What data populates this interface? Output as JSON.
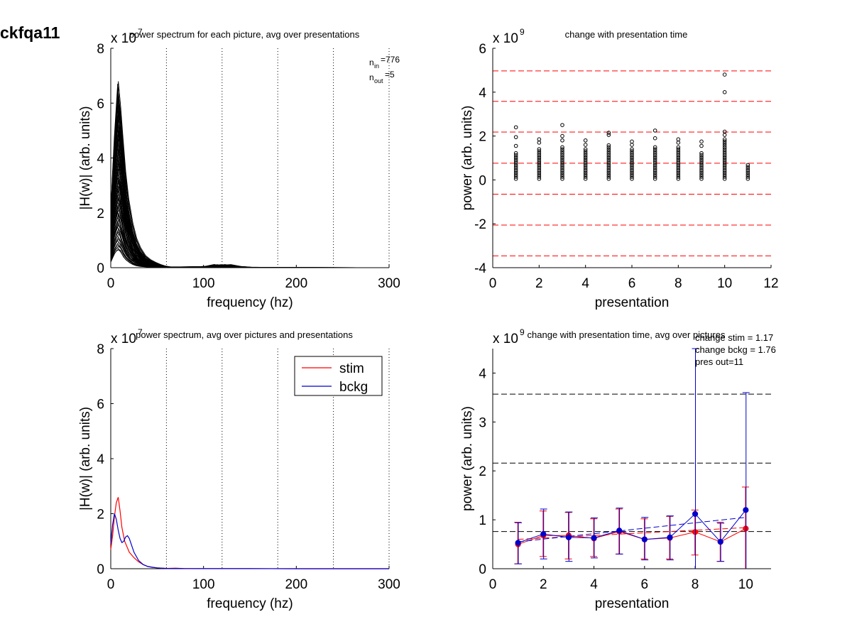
{
  "figure": {
    "id_label": "ckfqa11"
  },
  "colors": {
    "axis": "#000000",
    "stim": "#ff0000",
    "bckg": "#0000cc",
    "threshold_red": "#ff0000",
    "threshold_black": "#000000",
    "gridline": "#000000"
  },
  "chart_data": [
    {
      "type": "line",
      "title": "power spectrum for each picture, avg over presentations",
      "xlabel": "frequency (hz)",
      "ylabel": "|H(w)| (arb. units)",
      "exponent_label": "x 10",
      "exponent_power": "7",
      "xlim": [
        0,
        300
      ],
      "ylim": [
        0,
        8
      ],
      "xticks": [
        0,
        100,
        200,
        300
      ],
      "yticks": [
        0,
        2,
        4,
        6,
        8
      ],
      "vlines": [
        60,
        120,
        180,
        240,
        300
      ],
      "annotations": [
        {
          "base": "n",
          "sub": "in",
          "text": "=776"
        },
        {
          "base": "n",
          "sub": "out",
          "text": "=5"
        }
      ],
      "n_curves_drawn": 80,
      "envelope": {
        "x": [
          0,
          2,
          4,
          6,
          8,
          10,
          12,
          15,
          18,
          22,
          26,
          30,
          35,
          40,
          45,
          50,
          55,
          60,
          80,
          100,
          110,
          120,
          130,
          140,
          160,
          180,
          200,
          250,
          300
        ],
        "y_max": [
          2.1,
          3.5,
          4.8,
          5.8,
          6.8,
          6.0,
          5.0,
          3.6,
          2.6,
          1.7,
          1.1,
          0.75,
          0.45,
          0.3,
          0.2,
          0.12,
          0.06,
          0.03,
          0.03,
          0.04,
          0.05,
          0.12,
          0.05,
          0.02,
          0.01,
          0.01,
          0.005,
          0.003,
          0.002
        ],
        "y_min": [
          0.2,
          0.35,
          0.5,
          0.6,
          0.65,
          0.6,
          0.5,
          0.35,
          0.25,
          0.16,
          0.1,
          0.06,
          0.04,
          0.025,
          0.015,
          0.01,
          0.006,
          0.004,
          0.002,
          0.002,
          0.002,
          0.003,
          0.002,
          0.001,
          0.001,
          0.001,
          0.001,
          0.0,
          0.0
        ]
      }
    },
    {
      "type": "scatter",
      "title": "change with presentation time",
      "xlabel": "presentation",
      "ylabel": "power (arb. units)",
      "exponent_label": "x 10",
      "exponent_power": "9",
      "xlim": [
        0,
        12
      ],
      "ylim": [
        -4,
        6
      ],
      "xticks": [
        0,
        2,
        4,
        6,
        8,
        10,
        12
      ],
      "yticks": [
        -4,
        -2,
        0,
        2,
        4,
        6
      ],
      "hlines_dashed_red": [
        4.97,
        3.58,
        2.18,
        0.76,
        -0.65,
        -2.06,
        -3.46
      ],
      "columns": [
        {
          "x": 1,
          "max": 1.3,
          "outliers": [
            2.4,
            1.95,
            1.55
          ]
        },
        {
          "x": 2,
          "max": 1.4,
          "outliers": [
            1.85,
            1.7
          ]
        },
        {
          "x": 3,
          "max": 1.55,
          "outliers": [
            2.5,
            2.0,
            1.8
          ]
        },
        {
          "x": 4,
          "max": 1.4,
          "outliers": [
            1.8,
            1.6
          ]
        },
        {
          "x": 5,
          "max": 1.6,
          "outliers": [
            2.15,
            2.05
          ]
        },
        {
          "x": 6,
          "max": 1.4,
          "outliers": [
            1.75,
            1.6
          ]
        },
        {
          "x": 7,
          "max": 1.5,
          "outliers": [
            2.25,
            1.9
          ]
        },
        {
          "x": 8,
          "max": 1.5,
          "outliers": [
            1.85,
            1.7
          ]
        },
        {
          "x": 9,
          "max": 1.3,
          "outliers": [
            1.75,
            1.55
          ]
        },
        {
          "x": 10,
          "max": 1.9,
          "outliers": [
            4.8,
            4.0,
            2.2,
            2.05
          ]
        },
        {
          "x": 11,
          "max": 0.68,
          "outliers": []
        }
      ]
    },
    {
      "type": "line",
      "title": "power spectrum, avg over pictures and presentations",
      "xlabel": "frequency (hz)",
      "ylabel": "|H(w)| (arb. units)",
      "exponent_label": "x 10",
      "exponent_power": "7",
      "xlim": [
        0,
        300
      ],
      "ylim": [
        0,
        8
      ],
      "xticks": [
        0,
        100,
        200,
        300
      ],
      "yticks": [
        0,
        2,
        4,
        6,
        8
      ],
      "vlines": [
        60,
        120,
        180,
        240,
        300
      ],
      "legend": {
        "position": "top-right",
        "entries": [
          "stim",
          "bckg"
        ]
      },
      "series": [
        {
          "name": "stim",
          "x": [
            0,
            2,
            4,
            6,
            8,
            10,
            12,
            15,
            20,
            25,
            30,
            35,
            40,
            50,
            60,
            70,
            80,
            100,
            150,
            200,
            250,
            300
          ],
          "y": [
            0.7,
            1.2,
            1.9,
            2.4,
            2.6,
            2.1,
            1.5,
            1.0,
            0.6,
            0.4,
            0.25,
            0.15,
            0.08,
            0.03,
            0.01,
            0.02,
            0.005,
            0.003,
            0.002,
            0.001,
            0.001,
            0.0
          ]
        },
        {
          "name": "bckg",
          "x": [
            0,
            2,
            4,
            6,
            8,
            10,
            12,
            14,
            16,
            18,
            20,
            22,
            25,
            30,
            35,
            40,
            45,
            50,
            60,
            80,
            100,
            150,
            200,
            250,
            300
          ],
          "y": [
            0.9,
            1.6,
            2.0,
            1.8,
            1.4,
            1.1,
            0.95,
            1.0,
            1.15,
            1.2,
            1.1,
            0.9,
            0.6,
            0.3,
            0.15,
            0.08,
            0.05,
            0.03,
            0.01,
            0.005,
            0.003,
            0.002,
            0.001,
            0.001,
            0.0
          ]
        }
      ]
    },
    {
      "type": "line",
      "title": "change with presentation time, avg over pictures",
      "xlabel": "presentation",
      "ylabel": "power (arb. units)",
      "exponent_label": "x 10",
      "exponent_power": "9",
      "xlim": [
        0,
        11
      ],
      "ylim": [
        0,
        4.5
      ],
      "xticks": [
        0,
        2,
        4,
        6,
        8,
        10
      ],
      "yticks": [
        0,
        1,
        2,
        3,
        4
      ],
      "hlines_dashed_black": [
        3.57,
        2.16,
        0.76
      ],
      "annotations": [
        "change stim = 1.17",
        "change bckg = 1.76",
        "pres out=11"
      ],
      "x": [
        1,
        2,
        3,
        4,
        5,
        6,
        7,
        8,
        9,
        10
      ],
      "series": [
        {
          "name": "stim",
          "values": [
            0.5,
            0.68,
            0.68,
            0.62,
            0.76,
            0.6,
            0.63,
            0.75,
            0.55,
            0.82
          ],
          "err_low": [
            0.1,
            0.25,
            0.2,
            0.25,
            0.3,
            0.2,
            0.2,
            0.28,
            0.15,
            0.0
          ],
          "err_high": [
            0.95,
            1.18,
            1.15,
            1.02,
            1.22,
            1.02,
            1.07,
            1.2,
            0.95,
            1.67
          ],
          "trend": [
            0.6,
            0.84
          ]
        },
        {
          "name": "bckg",
          "values": [
            0.53,
            0.71,
            0.64,
            0.63,
            0.78,
            0.6,
            0.64,
            1.12,
            0.55,
            1.2
          ],
          "err_low": [
            0.1,
            0.2,
            0.15,
            0.22,
            0.3,
            0.18,
            0.18,
            0.0,
            0.15,
            0.0
          ],
          "err_high": [
            0.94,
            1.22,
            1.16,
            1.04,
            1.24,
            1.05,
            1.08,
            4.5,
            0.93,
            3.6
          ],
          "trend": [
            0.55,
            1.05
          ]
        }
      ]
    }
  ]
}
